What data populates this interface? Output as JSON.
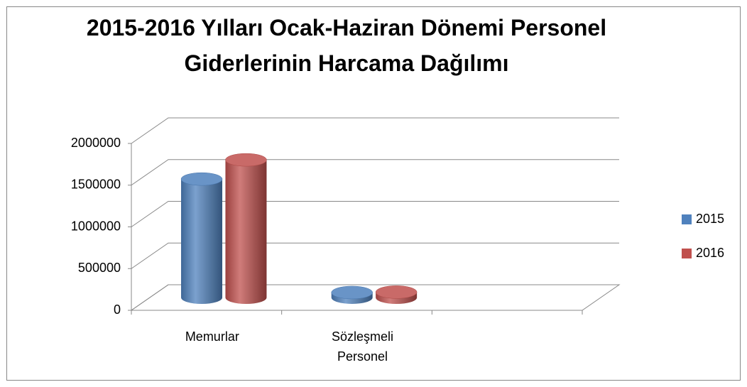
{
  "chart_data": {
    "type": "bar3d",
    "title": "2015-2016 Yılları Ocak-Haziran Dönemi Personel Giderlerinin Harcama Dağılımı",
    "categories": [
      "Memurlar",
      "Sözleşmeli Personel",
      null
    ],
    "series": [
      {
        "name": "2015",
        "color": "#4f81bd",
        "values": [
          1420000,
          60000,
          null
        ]
      },
      {
        "name": "2016",
        "color": "#c0504d",
        "values": [
          1650000,
          65000,
          null
        ]
      }
    ],
    "ylim": [
      0,
      2000000
    ],
    "yticks": [
      0,
      500000,
      1000000,
      1500000,
      2000000
    ],
    "grid": true,
    "legend": "right"
  }
}
